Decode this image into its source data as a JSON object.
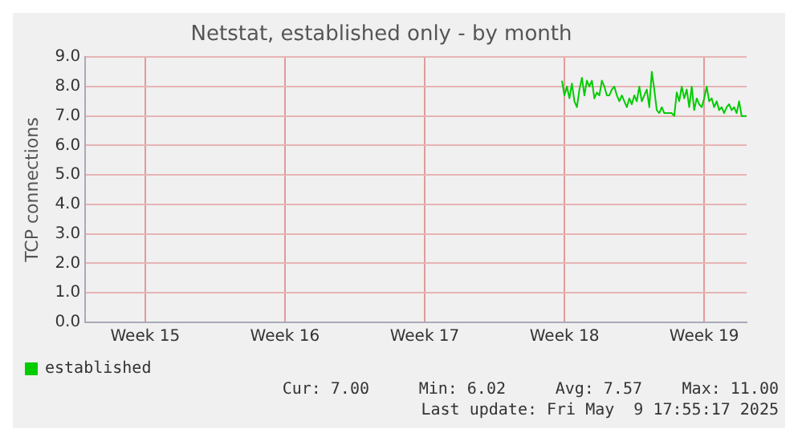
{
  "chart_data": {
    "type": "line",
    "title": "Netstat, established only - by month",
    "ylabel": "TCP connections",
    "categories": [
      null,
      null,
      null,
      null,
      null,
      null,
      null,
      null,
      null,
      null,
      null,
      null,
      null,
      null,
      null,
      null,
      null,
      null,
      null,
      null,
      null,
      null,
      null,
      null,
      "Week 15",
      null,
      null,
      null,
      null,
      null,
      null,
      null,
      null,
      null,
      null,
      null,
      null,
      null,
      null,
      null,
      null,
      null,
      null,
      null,
      null,
      null,
      null,
      null,
      null,
      null,
      null,
      null,
      null,
      null,
      null,
      null,
      null,
      null,
      null,
      null,
      null,
      null,
      null,
      null,
      null,
      null,
      null,
      null,
      null,
      null,
      null,
      null,
      null,
      null,
      null,
      null,
      null,
      null,
      null,
      null,
      "Week 16",
      null,
      null,
      null,
      null,
      null,
      null,
      null,
      null,
      null,
      null,
      null,
      null,
      null,
      null,
      null,
      null,
      null,
      null,
      null,
      null,
      null,
      null,
      null,
      null,
      null,
      null,
      null,
      null,
      null,
      null,
      null,
      null,
      null,
      null,
      null,
      null,
      null,
      null,
      null,
      null,
      null,
      null,
      null,
      null,
      null,
      null,
      null,
      null,
      null,
      null,
      null,
      null,
      null,
      null,
      null,
      "Week 17",
      null,
      null,
      null,
      null,
      null,
      null,
      null,
      null,
      null,
      null,
      null,
      null,
      null,
      null,
      null,
      null,
      null,
      null,
      null,
      null,
      null,
      null,
      null,
      null,
      null,
      null,
      null,
      null,
      null,
      null,
      null,
      null,
      null,
      null,
      null,
      null,
      null,
      null,
      null,
      null,
      null,
      null,
      null,
      null,
      null,
      null,
      null,
      null,
      null,
      null,
      null,
      null,
      null,
      null,
      null,
      "Week 18",
      null,
      null,
      null,
      null,
      null,
      null,
      null,
      null,
      null,
      null,
      null,
      null,
      null,
      null,
      null,
      null,
      null,
      null,
      null,
      null,
      null,
      null,
      null,
      null,
      null,
      null,
      null,
      null,
      null,
      null,
      null,
      null,
      null,
      null,
      null,
      null,
      null,
      null,
      null,
      null,
      null,
      null,
      null,
      null,
      null,
      null,
      null,
      null,
      null,
      null,
      null,
      null,
      null,
      null,
      null,
      "Week 19",
      null,
      null,
      null,
      null,
      null,
      null,
      null,
      null,
      null,
      null,
      null,
      null,
      null,
      null,
      null,
      null,
      null
    ],
    "ylim": [
      0,
      9
    ],
    "yticks": [
      {
        "value": 0,
        "label": "0.0"
      },
      {
        "value": 1,
        "label": "1.0"
      },
      {
        "value": 2,
        "label": "2.0"
      },
      {
        "value": 3,
        "label": "3.0"
      },
      {
        "value": 4,
        "label": "4.0"
      },
      {
        "value": 5,
        "label": "5.0"
      },
      {
        "value": 6,
        "label": "6.0"
      },
      {
        "value": 7,
        "label": "7.0"
      },
      {
        "value": 8,
        "label": "8.0"
      },
      {
        "value": 9,
        "label": "9.0"
      }
    ],
    "grid": true,
    "legend": "bottom left",
    "marker": "none",
    "line_style": "solid",
    "annotations": [
      "Cur: 7.00",
      "Min: 6.02",
      "Avg: 7.57",
      "Max: 11.00",
      "Last update: Fri May  9 17:55:17 2025"
    ],
    "series": [
      {
        "name": "established",
        "color": "#00cc00",
        "values": [
          null,
          null,
          null,
          null,
          null,
          null,
          null,
          null,
          null,
          null,
          null,
          null,
          null,
          null,
          null,
          null,
          null,
          null,
          null,
          null,
          null,
          null,
          null,
          null,
          null,
          null,
          null,
          null,
          null,
          null,
          null,
          null,
          null,
          null,
          null,
          null,
          null,
          null,
          null,
          null,
          null,
          null,
          null,
          null,
          null,
          null,
          null,
          null,
          null,
          null,
          null,
          null,
          null,
          null,
          null,
          null,
          null,
          null,
          null,
          null,
          null,
          null,
          null,
          null,
          null,
          null,
          null,
          null,
          null,
          null,
          null,
          null,
          null,
          null,
          null,
          null,
          null,
          null,
          null,
          null,
          null,
          null,
          null,
          null,
          null,
          null,
          null,
          null,
          null,
          null,
          null,
          null,
          null,
          null,
          null,
          null,
          null,
          null,
          null,
          null,
          null,
          null,
          null,
          null,
          null,
          null,
          null,
          null,
          null,
          null,
          null,
          null,
          null,
          null,
          null,
          null,
          null,
          null,
          null,
          null,
          null,
          null,
          null,
          null,
          null,
          null,
          null,
          null,
          null,
          null,
          null,
          null,
          null,
          null,
          null,
          null,
          null,
          null,
          null,
          null,
          null,
          null,
          null,
          null,
          null,
          null,
          null,
          null,
          null,
          null,
          null,
          null,
          null,
          null,
          null,
          null,
          null,
          null,
          null,
          null,
          null,
          null,
          null,
          null,
          null,
          null,
          null,
          null,
          null,
          null,
          null,
          null,
          null,
          null,
          null,
          null,
          null,
          null,
          null,
          null,
          null,
          null,
          null,
          null,
          null,
          null,
          null,
          null,
          null,
          null,
          null,
          8.2,
          7.7,
          8.0,
          7.6,
          8.1,
          7.5,
          7.3,
          7.9,
          8.3,
          7.7,
          8.2,
          8.0,
          8.2,
          7.6,
          7.8,
          7.7,
          8.2,
          8.0,
          7.7,
          7.7,
          7.9,
          8.0,
          7.7,
          7.5,
          7.7,
          7.5,
          7.3,
          7.6,
          7.4,
          7.7,
          7.5,
          8.0,
          7.5,
          7.7,
          7.9,
          7.3,
          8.5,
          7.9,
          7.2,
          7.1,
          7.3,
          7.1,
          7.1,
          7.1,
          7.1,
          7.0,
          7.8,
          7.5,
          8.0,
          7.6,
          7.9,
          7.3,
          8.0,
          7.2,
          7.6,
          7.4,
          7.3,
          7.6,
          8.0,
          7.5,
          7.6,
          7.3,
          7.5,
          7.2,
          7.3,
          7.1,
          7.3,
          7.4,
          7.2,
          7.3,
          7.1,
          7.5,
          7.0,
          7.0,
          7.0
        ]
      }
    ]
  }
}
